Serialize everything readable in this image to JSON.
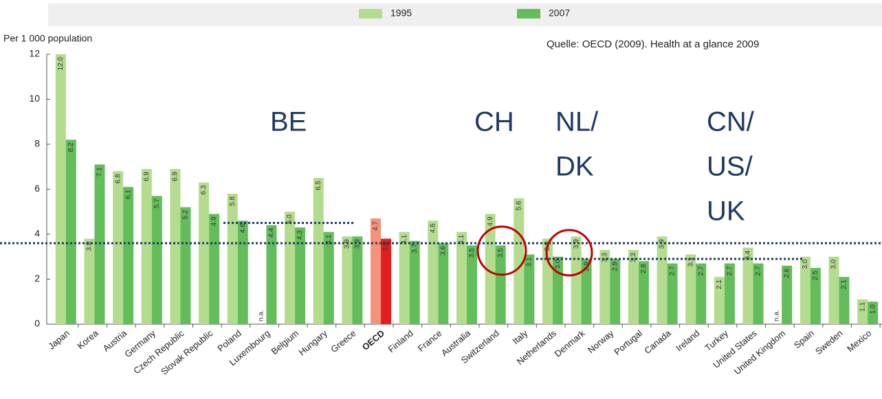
{
  "chart_data": {
    "type": "bar",
    "y_axis_label": "Per 1 000 population",
    "source": "Quelle: OECD (2009). Health at a glance 2009",
    "categories": [
      "Japan",
      "Korea",
      "Austria",
      "Germany",
      "Czech Republic",
      "Slovak Republic",
      "Poland",
      "Luxembourg",
      "Belgium",
      "Hungary",
      "Greece",
      "OECD",
      "Finland",
      "France",
      "Australia",
      "Switzerland",
      "Italy",
      "Netherlands",
      "Denmark",
      "Norway",
      "Portugal",
      "Canada",
      "Ireland",
      "Turkey",
      "United States",
      "United Kingdom",
      "Spain",
      "Sweden",
      "Mexico"
    ],
    "series": [
      {
        "name": "1995",
        "color": "#b3dc8e",
        "colors": [
          "#b3dc8e",
          "#b3dc8e",
          "#b3dc8e",
          "#b3dc8e",
          "#b3dc8e",
          "#b3dc8e",
          "#b3dc8e",
          "#b3dc8e",
          "#b3dc8e",
          "#b3dc8e",
          "#b3dc8e",
          "#f4927c",
          "#b3dc8e",
          "#b3dc8e",
          "#b3dc8e",
          "#b3dc8e",
          "#b3dc8e",
          "#b3dc8e",
          "#b3dc8e",
          "#b3dc8e",
          "#b3dc8e",
          "#b3dc8e",
          "#b3dc8e",
          "#b3dc8e",
          "#b3dc8e",
          "#b3dc8e",
          "#b3dc8e",
          "#b3dc8e",
          "#b3dc8e"
        ],
        "values": [
          12.0,
          3.8,
          6.8,
          6.9,
          6.9,
          6.3,
          5.8,
          null,
          5.0,
          6.5,
          3.9,
          4.7,
          4.1,
          4.6,
          4.1,
          4.9,
          5.6,
          3.8,
          3.9,
          3.3,
          3.3,
          3.9,
          3.1,
          2.1,
          3.4,
          null,
          3.0,
          3.0,
          1.1
        ],
        "value_labels": [
          "12.0",
          "3.8",
          "6.8",
          "6.9",
          "6.9",
          "6.3",
          "5.8",
          "n.a.",
          "5.0",
          "6.5",
          "3.9",
          "4.7",
          "4.1",
          "4.6",
          "4.1",
          "4.9",
          "5.6",
          "3.8",
          "3.9",
          "3.3",
          "3.3",
          "3.9",
          "3.1",
          "2.1",
          "3.4",
          "n.a.",
          "3.0",
          "3.0",
          "1.1"
        ]
      },
      {
        "name": "2007",
        "color": "#63bd5b",
        "colors": [
          "#63bd5b",
          "#63bd5b",
          "#63bd5b",
          "#63bd5b",
          "#63bd5b",
          "#63bd5b",
          "#63bd5b",
          "#63bd5b",
          "#63bd5b",
          "#63bd5b",
          "#63bd5b",
          "#e41e1e",
          "#63bd5b",
          "#63bd5b",
          "#63bd5b",
          "#63bd5b",
          "#63bd5b",
          "#63bd5b",
          "#63bd5b",
          "#63bd5b",
          "#63bd5b",
          "#63bd5b",
          "#63bd5b",
          "#63bd5b",
          "#63bd5b",
          "#63bd5b",
          "#63bd5b",
          "#63bd5b",
          "#63bd5b"
        ],
        "values": [
          8.2,
          7.1,
          6.1,
          5.7,
          5.2,
          4.9,
          4.6,
          4.4,
          4.3,
          4.1,
          3.9,
          3.8,
          3.7,
          3.6,
          3.5,
          3.5,
          3.1,
          3.0,
          2.9,
          2.9,
          2.8,
          2.7,
          2.7,
          2.7,
          2.7,
          2.6,
          2.5,
          2.1,
          1.0
        ],
        "value_labels": [
          "8.2",
          "7.1",
          "6.1",
          "5.7",
          "5.2",
          "4.9",
          "4.6",
          "4.4",
          "4.3",
          "4.1",
          "3.9",
          "3.8",
          "3.7",
          "3.6",
          "3.5",
          "3.5",
          "3.1",
          "3.0",
          "2.9",
          "2.9",
          "2.8",
          "2.7",
          "2.7",
          "2.7",
          "2.7",
          "2.6",
          "2.5",
          "2.1",
          "1.0"
        ]
      }
    ],
    "ylim": [
      0,
      12
    ],
    "yticks": [
      0,
      2,
      4,
      6,
      8,
      10,
      12
    ],
    "reference_lines": [
      4.5,
      3.6,
      2.9
    ],
    "annotations": [
      {
        "lines": [
          "BE"
        ]
      },
      {
        "lines": [
          "CH"
        ]
      },
      {
        "lines": [
          "NL/",
          "DK"
        ]
      },
      {
        "lines": [
          "CN/",
          "US/",
          "UK"
        ]
      }
    ]
  }
}
